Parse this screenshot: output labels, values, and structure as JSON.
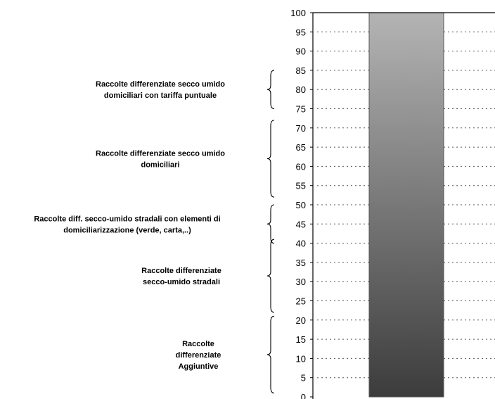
{
  "chart_data": {
    "type": "bar",
    "categories": [
      ""
    ],
    "series": [
      {
        "values": [
          100
        ]
      }
    ],
    "ylim": [
      0,
      100
    ],
    "y_ticks": [
      0,
      5,
      10,
      15,
      20,
      25,
      30,
      35,
      40,
      45,
      50,
      55,
      60,
      65,
      70,
      75,
      80,
      85,
      90,
      95,
      100
    ],
    "grid": "horizontal dotted",
    "bar_gradient": {
      "top": "#b4b4b4",
      "bottom": "#3c3c3c"
    },
    "annotations": [
      {
        "range": [
          75,
          85
        ],
        "lines": [
          "Raccolte differenziate secco umido",
          "domiciliari con tariffa puntuale"
        ]
      },
      {
        "range": [
          52,
          72
        ],
        "lines": [
          "Raccolte differenziate secco umido",
          "domiciliari"
        ]
      },
      {
        "range": [
          40,
          50
        ],
        "lines": [
          "Raccolte diff.  secco-umido stradali con elementi di",
          "domiciliarizzazione (verde, carta,..)"
        ]
      },
      {
        "range": [
          22,
          41
        ],
        "lines": [
          "Raccolte differenziate",
          "secco-umido  stradali"
        ]
      },
      {
        "range": [
          1,
          21
        ],
        "lines": [
          "Raccolte",
          "differenziate",
          "Aggiuntive"
        ]
      }
    ]
  }
}
